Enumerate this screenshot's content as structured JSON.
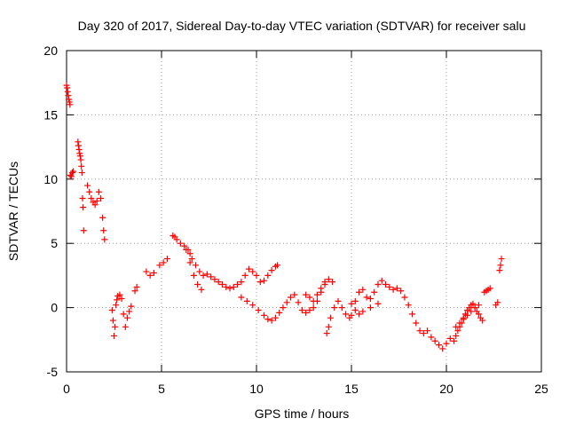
{
  "chart_data": {
    "type": "scatter",
    "title": "Day 320 of 2017, Sidereal Day-to-day VTEC variation (SDTVAR) for receiver salu",
    "xlabel": "GPS time / hours",
    "ylabel": "SDTVAR / TECUs",
    "xlim": [
      0,
      25
    ],
    "ylim": [
      -5,
      20
    ],
    "xticks": [
      0,
      5,
      10,
      15,
      20,
      25
    ],
    "yticks": [
      -5,
      0,
      5,
      10,
      15,
      20
    ],
    "grid": true,
    "marker": "+",
    "series": [
      {
        "name": "SDTVAR",
        "color": "#ff0000",
        "x": [
          0.0,
          0.03,
          0.06,
          0.09,
          0.12,
          0.15,
          0.18,
          0.2,
          0.25,
          0.3,
          0.35,
          0.6,
          0.63,
          0.66,
          0.69,
          0.72,
          0.75,
          0.78,
          0.81,
          0.84,
          0.87,
          0.9,
          1.1,
          1.2,
          1.3,
          1.4,
          1.5,
          1.6,
          1.7,
          1.8,
          1.9,
          1.95,
          2.0,
          2.4,
          2.45,
          2.5,
          2.55,
          2.6,
          2.65,
          2.7,
          2.8,
          2.9,
          3.0,
          3.1,
          3.2,
          3.3,
          3.4,
          3.6,
          3.7,
          4.2,
          4.4,
          4.6,
          4.9,
          5.1,
          5.3,
          5.6,
          5.7,
          5.8,
          6.0,
          6.2,
          6.4,
          6.5,
          6.6,
          6.8,
          7.0,
          7.2,
          7.4,
          7.6,
          7.8,
          8.0,
          8.2,
          8.4,
          8.6,
          8.8,
          9.0,
          9.2,
          9.4,
          9.6,
          9.8,
          10.0,
          10.2,
          10.4,
          10.6,
          10.8,
          11.0,
          11.1,
          6.3,
          6.5,
          6.7,
          6.9,
          7.1,
          9.2,
          9.5,
          9.8,
          10.1,
          10.4,
          10.6,
          10.8,
          11.0,
          11.2,
          11.4,
          11.6,
          11.8,
          12.0,
          12.2,
          12.4,
          12.6,
          12.8,
          13.0,
          13.2,
          13.4,
          13.6,
          12.6,
          12.8,
          13.0,
          13.2,
          13.4,
          13.6,
          13.8,
          14.0,
          13.7,
          13.8,
          13.9,
          14.1,
          14.3,
          14.5,
          14.7,
          14.9,
          15.0,
          15.2,
          15.4,
          15.6,
          15.8,
          16.0,
          16.2,
          16.4,
          16.6,
          15.0,
          15.2,
          15.4,
          15.6,
          16.0,
          16.4,
          16.8,
          17.0,
          17.2,
          17.4,
          17.6,
          17.8,
          18.0,
          18.2,
          18.4,
          18.6,
          18.8,
          19.0,
          19.2,
          19.4,
          19.6,
          19.8,
          20.0,
          20.2,
          20.4,
          20.5,
          20.6,
          20.7,
          20.8,
          20.9,
          21.0,
          21.1,
          21.2,
          21.3,
          21.4,
          21.5,
          21.6,
          21.7,
          21.8,
          21.9,
          20.5,
          20.7,
          20.9,
          21.1,
          21.3,
          21.5,
          21.7,
          22.0,
          22.1,
          22.2,
          22.3,
          22.6,
          22.7,
          22.8,
          22.85,
          22.9
        ],
        "y": [
          17.3,
          17.1,
          16.8,
          16.5,
          16.2,
          16.0,
          15.8,
          10.3,
          10.2,
          10.5,
          10.6,
          12.9,
          12.6,
          12.3,
          12.0,
          11.8,
          11.5,
          11.0,
          10.5,
          8.5,
          7.8,
          6.0,
          9.5,
          9.0,
          8.5,
          8.2,
          8.0,
          8.3,
          9.0,
          8.5,
          7.0,
          6.0,
          5.3,
          -0.2,
          -1.0,
          -2.2,
          -1.5,
          0.2,
          0.6,
          0.9,
          1.0,
          0.7,
          -0.5,
          -1.5,
          -0.8,
          -0.3,
          0.1,
          1.3,
          1.6,
          2.8,
          2.5,
          2.7,
          3.3,
          3.5,
          3.8,
          5.6,
          5.5,
          5.3,
          5.0,
          4.8,
          4.5,
          4.2,
          3.8,
          3.3,
          2.8,
          2.5,
          2.6,
          2.4,
          2.2,
          2.0,
          1.8,
          1.6,
          1.5,
          1.6,
          1.8,
          2.0,
          2.5,
          3.0,
          2.8,
          2.5,
          2.0,
          2.1,
          2.5,
          2.9,
          3.2,
          3.3,
          4.5,
          3.5,
          2.5,
          1.8,
          1.4,
          0.8,
          0.5,
          0.2,
          -0.2,
          -0.6,
          -0.9,
          -1.0,
          -0.8,
          -0.4,
          0.0,
          0.4,
          0.8,
          1.0,
          0.4,
          -0.2,
          -0.4,
          -0.2,
          0.0,
          0.5,
          1.2,
          1.8,
          1.0,
          0.8,
          0.5,
          1.0,
          1.5,
          2.0,
          2.2,
          2.0,
          -2.0,
          -1.5,
          -0.8,
          0.0,
          0.5,
          0.0,
          -0.5,
          -0.8,
          -0.6,
          0.5,
          1.2,
          1.4,
          0.8,
          0.7,
          1.2,
          1.8,
          2.1,
          0.3,
          -0.2,
          -0.5,
          -0.3,
          0.0,
          0.3,
          1.8,
          1.6,
          1.4,
          1.5,
          1.3,
          0.8,
          0.2,
          -0.5,
          -1.2,
          -1.8,
          -2.0,
          -1.8,
          -2.3,
          -2.6,
          -2.9,
          -3.2,
          -2.8,
          -2.4,
          -2.6,
          -2.2,
          -1.8,
          -1.5,
          -1.2,
          -0.8,
          -0.5,
          -0.2,
          0.0,
          0.2,
          0.3,
          0.0,
          -0.3,
          -0.5,
          -0.8,
          -1.0,
          -1.5,
          -1.2,
          -0.9,
          -0.6,
          -0.3,
          0.0,
          0.2,
          1.2,
          1.3,
          1.4,
          1.5,
          0.2,
          0.4,
          2.9,
          3.3,
          3.8
        ]
      }
    ]
  }
}
